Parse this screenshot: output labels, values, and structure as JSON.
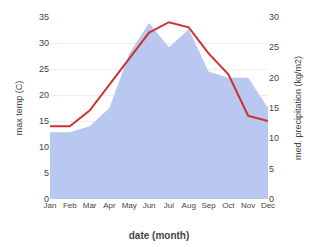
{
  "chart_data": {
    "type": "line",
    "xlabel": "date (month)",
    "ylabel": "max temp (C)",
    "y2label": "med. precipitation (kg/m2)",
    "categories": [
      "Jan",
      "Feb",
      "Mar",
      "Apr",
      "May",
      "Jun",
      "Jul",
      "Aug",
      "Sep",
      "Oct",
      "Nov",
      "Dec"
    ],
    "series": [
      {
        "type": "area",
        "axis": "y2",
        "color": "#b8c8f0",
        "values": [
          11,
          11,
          12,
          15,
          24,
          29,
          25,
          28,
          21,
          20,
          20,
          15
        ]
      },
      {
        "type": "line",
        "axis": "y",
        "color": "#cc3333",
        "values": [
          14,
          14,
          17,
          22,
          27,
          32,
          34,
          33,
          28,
          24,
          16,
          15
        ]
      }
    ],
    "ylim": [
      0,
      35
    ],
    "yticks": [
      0,
      5,
      10,
      15,
      20,
      25,
      30,
      35
    ],
    "y2lim": [
      0,
      30
    ],
    "y2ticks": [
      0,
      5,
      10,
      15,
      20,
      25,
      30
    ],
    "grid": true
  }
}
